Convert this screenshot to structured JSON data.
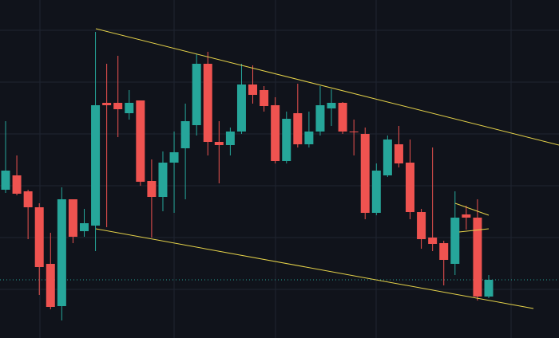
{
  "chart_data": {
    "type": "candlestick",
    "ylim": [
      0,
      424
    ],
    "up_color": "#26a69a",
    "down_color": "#ef5350",
    "open": [
      186,
      204,
      184,
      164,
      93,
      40,
      174,
      134,
      141,
      295,
      295,
      282,
      298,
      197,
      177,
      220,
      238,
      267,
      344,
      246,
      242,
      259,
      318,
      311,
      292,
      222,
      282,
      243,
      259,
      288,
      295,
      259,
      256,
      157,
      204,
      243,
      220,
      158,
      126,
      119,
      93,
      155,
      151,
      52
    ],
    "high": [
      272,
      229,
      186,
      169,
      132,
      189,
      174,
      162,
      384,
      344,
      354,
      311,
      298,
      224,
      234,
      259,
      294,
      356,
      359,
      272,
      264,
      344,
      342,
      316,
      302,
      284,
      319,
      284,
      316,
      312,
      296,
      274,
      264,
      219,
      254,
      266,
      249,
      162,
      239,
      122,
      184,
      166,
      174,
      79
    ],
    "low": [
      182,
      179,
      124,
      54,
      36,
      22,
      119,
      127,
      109,
      139,
      252,
      274,
      191,
      126,
      159,
      157,
      174,
      254,
      229,
      194,
      229,
      256,
      294,
      284,
      219,
      219,
      239,
      239,
      254,
      266,
      256,
      229,
      149,
      154,
      202,
      214,
      149,
      112,
      109,
      66,
      79,
      136,
      47,
      50
    ],
    "close": [
      210,
      181,
      164,
      89,
      39,
      174,
      127,
      144,
      292,
      292,
      287,
      295,
      196,
      177,
      220,
      233,
      272,
      344,
      246,
      242,
      259,
      318,
      305,
      291,
      222,
      275,
      243,
      259,
      292,
      295,
      259,
      258,
      157,
      210,
      249,
      219,
      158,
      124,
      118,
      98,
      151,
      151,
      52,
      73
    ]
  }
}
